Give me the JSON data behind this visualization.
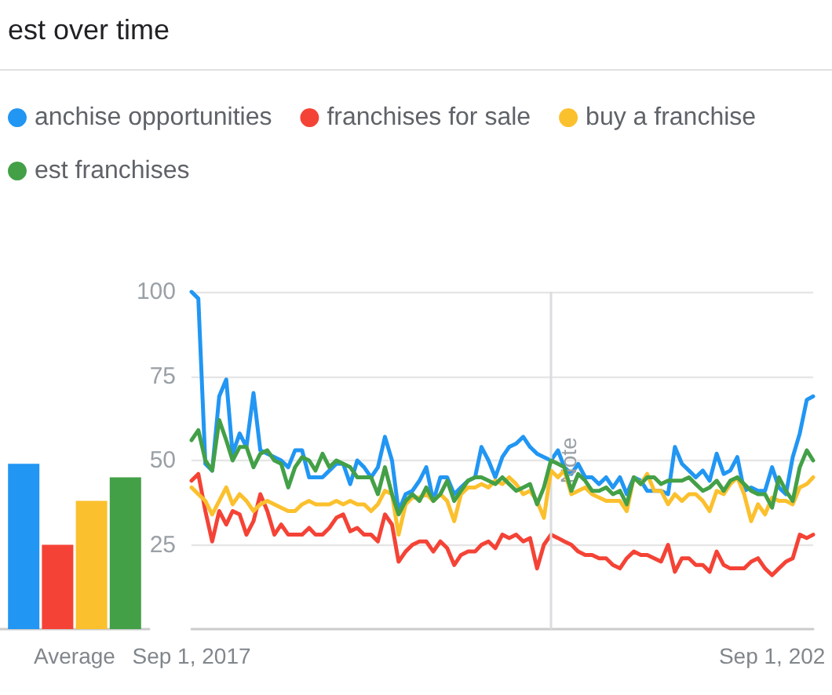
{
  "chart_data": [
    {
      "type": "bar",
      "title": "est over time",
      "categories": [
        "Average"
      ],
      "series": [
        {
          "color": "#2196f3",
          "values": [
            49
          ]
        },
        {
          "color": "#f44336",
          "values": [
            25
          ]
        },
        {
          "color": "#fbc02d",
          "values": [
            38
          ]
        },
        {
          "color": "#43a047",
          "values": [
            45
          ]
        }
      ],
      "ylim": [
        0,
        100
      ],
      "tick_labels": "x"
    },
    {
      "type": "line",
      "x": [
        "2017-09",
        "2017-10",
        "2017-11",
        "2017-12",
        "2018-01",
        "2018-02",
        "2018-03",
        "2018-04",
        "2018-05",
        "2018-06",
        "2018-07",
        "2018-08",
        "2018-09",
        "2018-10",
        "2018-11",
        "2018-12",
        "2019-01",
        "2019-02",
        "2019-03",
        "2019-04",
        "2019-05",
        "2019-06",
        "2019-07",
        "2019-08",
        "2019-09",
        "2019-10",
        "2019-11",
        "2019-12",
        "2020-01",
        "2020-02",
        "2020-03",
        "2020-04",
        "2020-05",
        "2020-06",
        "2020-07",
        "2020-08",
        "2020-09",
        "2020-10",
        "2020-11",
        "2020-12",
        "2021-01",
        "2021-02",
        "2021-03",
        "2021-04",
        "2021-05",
        "2021-06",
        "2021-07",
        "2021-08",
        "2021-09",
        "2021-10",
        "2021-11",
        "2021-12",
        "2022-01",
        "2022-02",
        "2022-03",
        "2022-04",
        "2022-05",
        "2022-06",
        "2022-07",
        "2022-08",
        "2022-09",
        "2022-10",
        "2022-11",
        "2022-12",
        "2023-01",
        "2023-02",
        "2023-03",
        "2023-04",
        "2023-05",
        "2023-06",
        "2023-07",
        "2023-08",
        "2023-09",
        "2023-10",
        "2023-11",
        "2023-12",
        "2024-01",
        "2024-02",
        "2024-03",
        "2024-04",
        "2024-05",
        "2024-06",
        "2024-07",
        "2024-08",
        "2024-09",
        "2024-10",
        "2024-11",
        "2024-12",
        "2025-01",
        "2025-02",
        "2025-03"
      ],
      "series": [
        {
          "name": "anchise opportunities",
          "color": "#2196f3",
          "values": [
            100,
            98,
            49,
            47,
            69,
            74,
            52,
            58,
            54,
            70,
            53,
            52,
            51,
            50,
            48,
            53,
            53,
            45,
            45,
            45,
            47,
            49,
            49,
            43,
            50,
            48,
            45,
            48,
            57,
            50,
            35,
            40,
            41,
            44,
            48,
            38,
            45,
            45,
            40,
            42,
            44,
            45,
            54,
            50,
            45,
            51,
            54,
            55,
            57,
            54,
            52,
            51,
            50,
            53,
            48,
            46,
            49,
            45,
            45,
            43,
            45,
            42,
            45,
            40,
            45,
            44,
            41,
            41,
            41,
            40,
            54,
            49,
            47,
            45,
            47,
            44,
            52,
            46,
            47,
            51,
            41,
            42,
            41,
            41,
            48,
            42,
            40,
            51,
            58,
            68,
            69
          ]
        },
        {
          "name": "franchises for sale",
          "color": "#f44336",
          "values": [
            44,
            46,
            35,
            26,
            35,
            31,
            35,
            34,
            28,
            32,
            40,
            35,
            28,
            31,
            28,
            28,
            28,
            30,
            28,
            28,
            30,
            33,
            34,
            29,
            30,
            28,
            28,
            26,
            34,
            31,
            20,
            23,
            25,
            26,
            26,
            23,
            26,
            24,
            19,
            22,
            23,
            23,
            25,
            26,
            24,
            28,
            27,
            28,
            26,
            27,
            18,
            25,
            28,
            27,
            26,
            25,
            23,
            22,
            22,
            21,
            21,
            19,
            18,
            21,
            23,
            22,
            22,
            21,
            20,
            25,
            17,
            21,
            21,
            19,
            19,
            17,
            23,
            19,
            18,
            18,
            18,
            20,
            21,
            18,
            16,
            18,
            20,
            21,
            28,
            27,
            28
          ]
        },
        {
          "name": "buy a franchise",
          "color": "#fbc02d",
          "values": [
            42,
            40,
            38,
            34,
            38,
            42,
            37,
            40,
            38,
            35,
            37,
            38,
            37,
            36,
            35,
            35,
            37,
            38,
            37,
            37,
            37,
            38,
            37,
            38,
            37,
            37,
            35,
            37,
            41,
            40,
            28,
            37,
            39,
            39,
            40,
            38,
            40,
            38,
            32,
            40,
            42,
            42,
            43,
            42,
            44,
            43,
            45,
            43,
            40,
            41,
            38,
            33,
            47,
            45,
            47,
            40,
            41,
            42,
            40,
            39,
            38,
            38,
            38,
            35,
            45,
            43,
            46,
            41,
            41,
            37,
            40,
            38,
            40,
            40,
            38,
            35,
            41,
            40,
            43,
            45,
            40,
            32,
            37,
            34,
            39,
            38,
            38,
            37,
            42,
            43,
            45
          ]
        },
        {
          "name": "est franchises",
          "color": "#43a047",
          "values": [
            56,
            59,
            50,
            47,
            62,
            56,
            50,
            54,
            54,
            48,
            52,
            53,
            50,
            49,
            42,
            48,
            51,
            50,
            47,
            52,
            48,
            50,
            49,
            48,
            45,
            45,
            45,
            40,
            48,
            40,
            34,
            38,
            40,
            38,
            42,
            38,
            40,
            44,
            38,
            41,
            44,
            45,
            45,
            44,
            43,
            45,
            43,
            41,
            42,
            43,
            37,
            42,
            50,
            49,
            48,
            41,
            46,
            44,
            41,
            41,
            42,
            40,
            41,
            37,
            45,
            43,
            45,
            45,
            43,
            44,
            44,
            44,
            45,
            43,
            41,
            42,
            44,
            41,
            44,
            45,
            43,
            41,
            40,
            40,
            36,
            45,
            41,
            38,
            48,
            53,
            50
          ]
        }
      ],
      "xlim": [
        "2017-09",
        "2025-03"
      ],
      "ylim": [
        0,
        100
      ],
      "xticks": [
        {
          "value": "2017-09-01",
          "label": "Sep 1, 2017"
        },
        {
          "value": "2024-09-01",
          "label": "Sep 1, 202"
        }
      ],
      "yticks": [
        25,
        50,
        75,
        100
      ],
      "grid": "y",
      "legend": "top left",
      "marker": "none",
      "line_style": "solid",
      "ref_lines": [
        {
          "axis": "x",
          "value": "2022-01-01",
          "label": "Note",
          "color": "#dadce0"
        }
      ]
    }
  ]
}
